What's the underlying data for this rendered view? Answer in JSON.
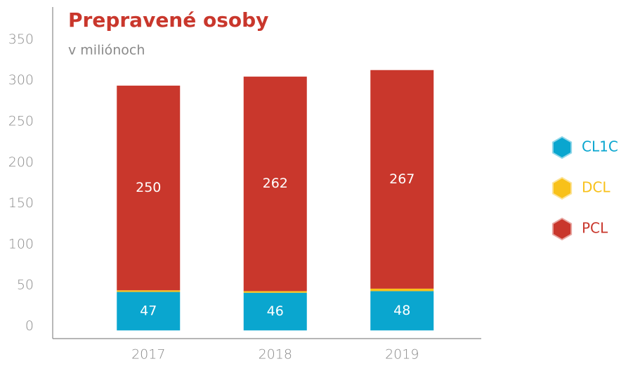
{
  "chart_data": {
    "type": "stacked_bar",
    "title": "Prepravené osoby",
    "subtitle": "v miliónoch",
    "categories": [
      "2017",
      "2018",
      "2019"
    ],
    "series": [
      {
        "name": "CL1C",
        "color": "#0aa6cf",
        "values": [
          47,
          46,
          48
        ]
      },
      {
        "name": "DCL",
        "color": "#f8c11a",
        "values": [
          2,
          2,
          3
        ]
      },
      {
        "name": "PCL",
        "color": "#c9372c",
        "values": [
          250,
          262,
          267
        ]
      }
    ],
    "ylim": [
      -10,
      395
    ],
    "yticks": [
      0,
      50,
      100,
      150,
      200,
      250,
      300,
      350
    ],
    "grid": false
  }
}
